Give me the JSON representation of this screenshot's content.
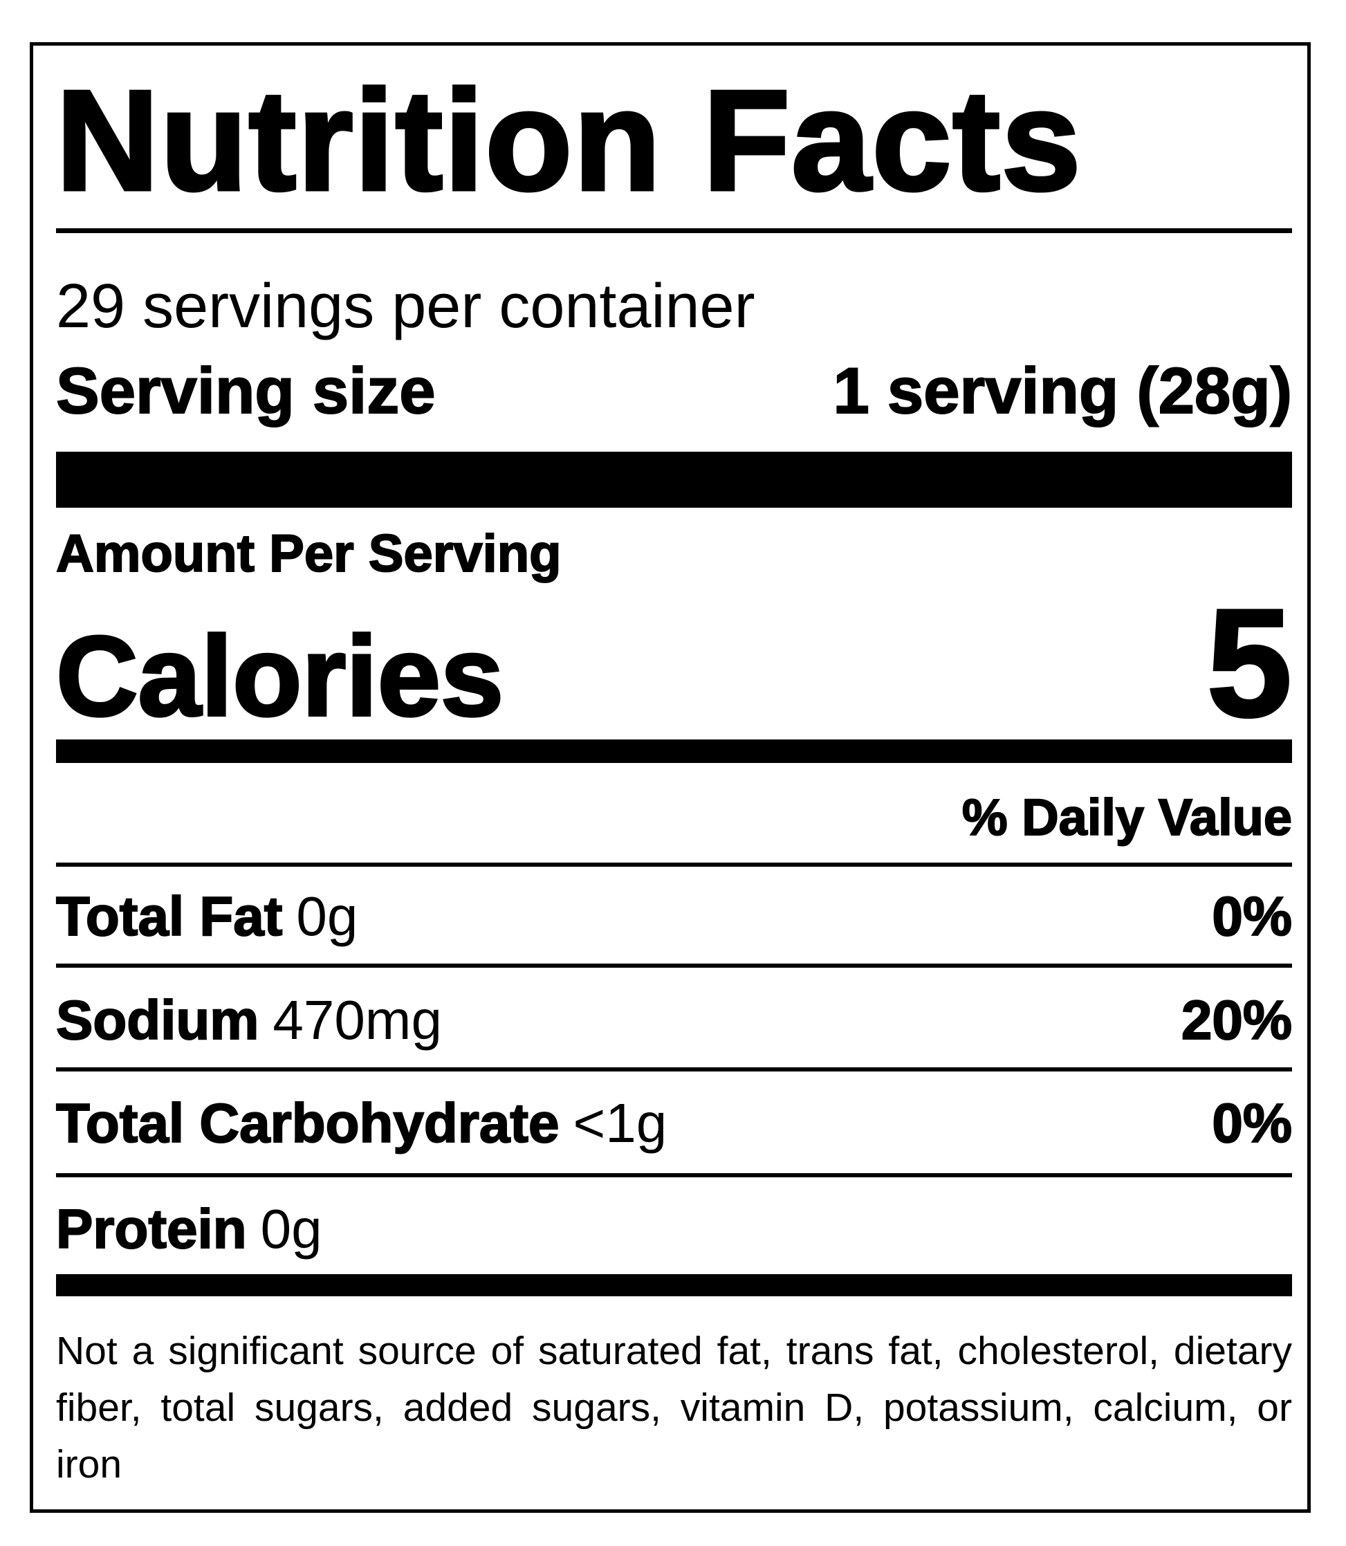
{
  "label": {
    "title": "Nutrition Facts",
    "servings_per_container": "29 servings per container",
    "serving_size_label": "Serving size",
    "serving_size_value": "1 serving (28g)",
    "amount_per_serving": "Amount Per Serving",
    "calories_label": "Calories",
    "calories_value": "5",
    "daily_value_header": "% Daily Value",
    "nutrients": [
      {
        "name": "Total Fat",
        "amount": "0g",
        "dv": "0%"
      },
      {
        "name": "Sodium",
        "amount": "470mg",
        "dv": "20%"
      },
      {
        "name": "Total Carbohydrate",
        "amount": "<1g",
        "dv": "0%"
      },
      {
        "name": "Protein",
        "amount": "0g",
        "dv": ""
      }
    ],
    "footnote": "Not a significant source of saturated fat, trans fat, cholesterol, dietary fiber, total sugars, added sugars, vitamin D, potassium, calcium, or iron"
  }
}
